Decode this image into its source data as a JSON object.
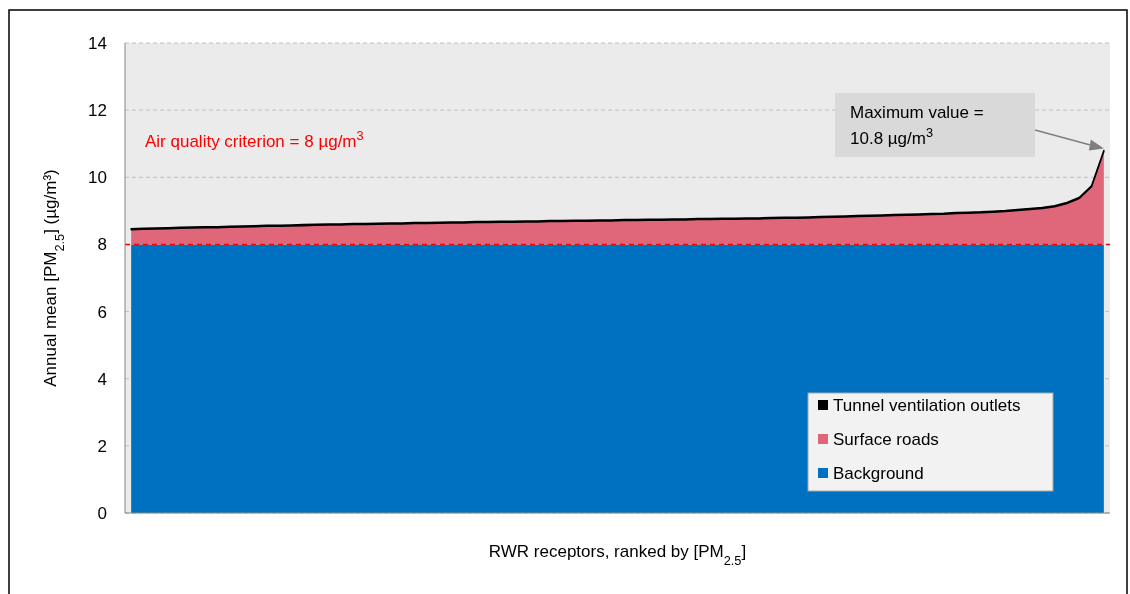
{
  "chart_data": {
    "type": "area",
    "stacked": true,
    "xlabel": "RWR receptors, ranked by [PM$_{2.5}$]",
    "ylabel": "Annual mean [PM$_{2.5}$] (µg/m³)",
    "categories": [
      null,
      null,
      null,
      null,
      null,
      null,
      null,
      null,
      null,
      null,
      null,
      null,
      null,
      null,
      null,
      null,
      null,
      null,
      null,
      null,
      null,
      null,
      null,
      null,
      null,
      null,
      null,
      null,
      null,
      null,
      null,
      null,
      null,
      null,
      null,
      null,
      null,
      null,
      null,
      null,
      null,
      null,
      null,
      null,
      null,
      null,
      null,
      null,
      null,
      null,
      null,
      null,
      null,
      null,
      null,
      null,
      null,
      null,
      null,
      null,
      null,
      null,
      null,
      null,
      null,
      null,
      null,
      null,
      null,
      null,
      null,
      null,
      null,
      null,
      null,
      null,
      null,
      null,
      null,
      null
    ],
    "series": [
      {
        "name": "Background",
        "color": "#0070c0",
        "values": [
          8,
          8,
          8,
          8,
          8,
          8,
          8,
          8,
          8,
          8,
          8,
          8,
          8,
          8,
          8,
          8,
          8,
          8,
          8,
          8,
          8,
          8,
          8,
          8,
          8,
          8,
          8,
          8,
          8,
          8,
          8,
          8,
          8,
          8,
          8,
          8,
          8,
          8,
          8,
          8,
          8,
          8,
          8,
          8,
          8,
          8,
          8,
          8,
          8,
          8,
          8,
          8,
          8,
          8,
          8,
          8,
          8,
          8,
          8,
          8,
          8,
          8,
          8,
          8,
          8,
          8,
          8,
          8,
          8,
          8,
          8,
          8,
          8,
          8,
          8,
          8,
          8,
          8,
          8,
          8
        ]
      },
      {
        "name": "Surface roads",
        "color": "#e0677a",
        "values": [
          0.44,
          0.45,
          0.46,
          0.47,
          0.48,
          0.49,
          0.5,
          0.5,
          0.51,
          0.52,
          0.53,
          0.54,
          0.54,
          0.55,
          0.56,
          0.57,
          0.58,
          0.58,
          0.59,
          0.59,
          0.6,
          0.61,
          0.61,
          0.62,
          0.62,
          0.63,
          0.64,
          0.64,
          0.65,
          0.65,
          0.66,
          0.66,
          0.67,
          0.67,
          0.68,
          0.68,
          0.69,
          0.69,
          0.7,
          0.7,
          0.71,
          0.71,
          0.72,
          0.72,
          0.73,
          0.73,
          0.74,
          0.74,
          0.75,
          0.75,
          0.76,
          0.76,
          0.77,
          0.78,
          0.78,
          0.79,
          0.8,
          0.81,
          0.82,
          0.83,
          0.84,
          0.85,
          0.86,
          0.87,
          0.88,
          0.89,
          0.9,
          0.92,
          0.93,
          0.94,
          0.96,
          0.98,
          1.01,
          1.04,
          1.07,
          1.12,
          1.22,
          1.37,
          1.72,
          2.77
        ]
      },
      {
        "name": "Tunnel ventilation outlets",
        "color": "#000000",
        "values": [
          0.03,
          0.03,
          0.03,
          0.03,
          0.03,
          0.03,
          0.03,
          0.03,
          0.03,
          0.03,
          0.03,
          0.03,
          0.03,
          0.03,
          0.03,
          0.03,
          0.03,
          0.03,
          0.03,
          0.03,
          0.03,
          0.03,
          0.03,
          0.03,
          0.03,
          0.03,
          0.03,
          0.03,
          0.03,
          0.03,
          0.03,
          0.03,
          0.03,
          0.03,
          0.03,
          0.03,
          0.03,
          0.03,
          0.03,
          0.03,
          0.03,
          0.03,
          0.03,
          0.03,
          0.03,
          0.03,
          0.03,
          0.03,
          0.03,
          0.03,
          0.03,
          0.03,
          0.03,
          0.03,
          0.03,
          0.03,
          0.03,
          0.03,
          0.03,
          0.03,
          0.03,
          0.03,
          0.03,
          0.03,
          0.03,
          0.03,
          0.03,
          0.03,
          0.03,
          0.03,
          0.03,
          0.03,
          0.03,
          0.03,
          0.03,
          0.03,
          0.03,
          0.03,
          0.03,
          0.03
        ]
      }
    ],
    "ylim": [
      0,
      14
    ],
    "yticks": [
      0,
      2,
      4,
      6,
      8,
      10,
      12,
      14
    ],
    "grid": "y",
    "legend": "bottom right",
    "ref_lines": [
      {
        "axis": "y",
        "value": 8,
        "label": "Air quality criterion = 8 µg/m$^{3}$",
        "color": "#ff0000",
        "line_style": "dashed"
      }
    ],
    "annotations": [
      "Maximum value =\n10.8 µg/m$^{3}$"
    ]
  }
}
